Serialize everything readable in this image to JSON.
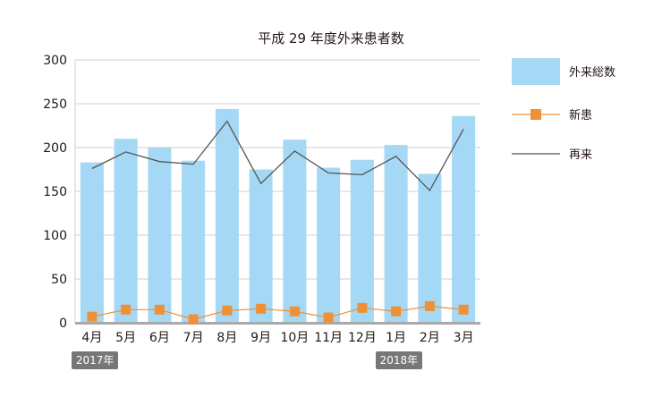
{
  "chart_data": {
    "type": "bar",
    "title": "平成 29 年度外来患者数",
    "categories": [
      "4月",
      "5月",
      "6月",
      "7月",
      "8月",
      "9月",
      "10月",
      "11月",
      "12月",
      "1月",
      "2月",
      "3月"
    ],
    "series": [
      {
        "name": "外来総数",
        "type": "bar",
        "color": "#a4d8f5",
        "values": [
          183,
          210,
          200,
          185,
          244,
          175,
          209,
          177,
          186,
          203,
          170,
          236
        ]
      },
      {
        "name": "新患",
        "type": "line",
        "marker": "square",
        "color": "#f09035",
        "values": [
          7,
          15,
          15,
          4,
          14,
          16,
          13,
          6,
          17,
          13,
          19,
          15
        ]
      },
      {
        "name": "再来",
        "type": "line",
        "marker": "none",
        "color": "#555555",
        "values": [
          176,
          195,
          184,
          181,
          230,
          159,
          196,
          171,
          169,
          190,
          151,
          221
        ]
      }
    ],
    "ylim": [
      0,
      300
    ],
    "yticks": [
      0,
      50,
      100,
      150,
      200,
      250,
      300
    ],
    "xlabel": "",
    "ylabel": "",
    "grid": true,
    "legend_position": "right",
    "year_labels": [
      {
        "text": "2017年",
        "category": "4月"
      },
      {
        "text": "2018年",
        "category": "1月"
      }
    ]
  }
}
